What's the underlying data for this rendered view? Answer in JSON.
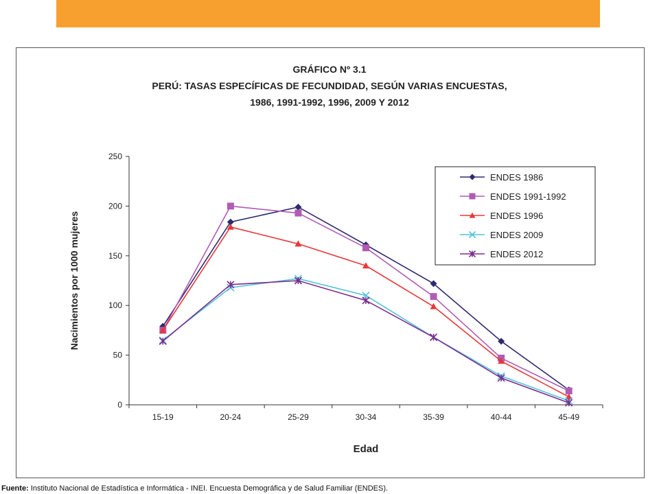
{
  "banner": {
    "color": "#F7A030"
  },
  "titles": {
    "line1": "GRÁFICO Nº 3.1",
    "line2": "PERÚ: TASAS ESPECÍFICAS DE FECUNDIDAD, SEGÚN  VARIAS ENCUESTAS,",
    "line3": "1986, 1991-1992, 1996, 2009 Y 2012"
  },
  "source": {
    "label": "Fuente:",
    "text": "Instituto Nacional de Estadística e Informática - INEI. Encuesta Demográfica y de Salud Familiar (ENDES)."
  },
  "chart_data": {
    "type": "line",
    "title": "PERÚ: TASAS ESPECÍFICAS DE FECUNDIDAD, SEGÚN  VARIAS ENCUESTAS, 1986, 1991-1992, 1996, 2009 Y 2012",
    "xlabel": "Edad",
    "ylabel": "Nacimientos por 1000 mujeres",
    "categories": [
      "15-19",
      "20-24",
      "25-29",
      "30-34",
      "35-39",
      "40-44",
      "45-49"
    ],
    "ylim": [
      0,
      250
    ],
    "yticks": [
      0,
      50,
      100,
      150,
      200,
      250
    ],
    "grid": false,
    "legend_position": "top-right",
    "series": [
      {
        "name": "ENDES 1986",
        "color": "#2E2A6E",
        "marker": "diamond",
        "values": [
          79,
          184,
          199,
          161,
          122,
          64,
          15
        ]
      },
      {
        "name": "ENDES 1991-1992",
        "color": "#B05CB4",
        "marker": "square",
        "values": [
          75,
          200,
          193,
          158,
          109,
          47,
          14
        ]
      },
      {
        "name": "ENDES 1996",
        "color": "#E8383A",
        "marker": "triangle",
        "values": [
          75,
          179,
          162,
          140,
          99,
          44,
          8
        ]
      },
      {
        "name": "ENDES 2009",
        "color": "#4FC3DA",
        "marker": "x",
        "values": [
          65,
          118,
          127,
          110,
          68,
          29,
          4
        ]
      },
      {
        "name": "ENDES 2012",
        "color": "#7B2D8E",
        "marker": "star",
        "values": [
          64,
          121,
          125,
          105,
          68,
          27,
          2
        ]
      }
    ]
  }
}
